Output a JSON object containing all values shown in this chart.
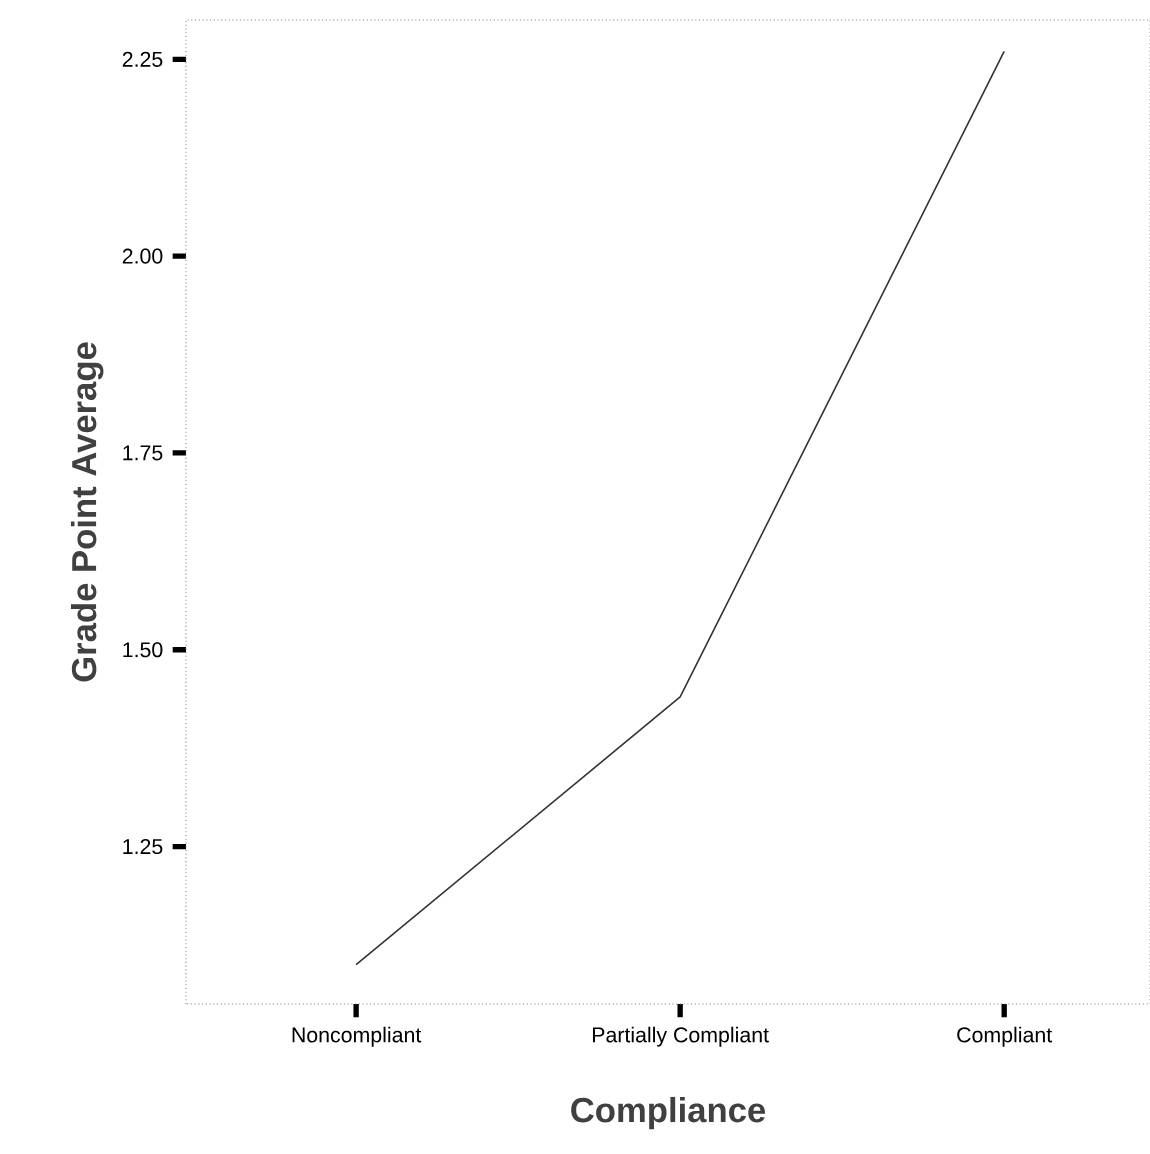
{
  "chart_data": {
    "type": "line",
    "xlabel": "Compliance",
    "ylabel": "Grade Point Average",
    "categories": [
      "Noncompliant",
      "Partially Compliant",
      "Compliant"
    ],
    "values": [
      1.1,
      1.44,
      2.26
    ],
    "color": "#333333",
    "ylim": [
      1.05,
      2.3
    ],
    "yticks": [
      {
        "value": 1.25,
        "label": "1.25"
      },
      {
        "value": 1.5,
        "label": "1.50"
      },
      {
        "value": 1.75,
        "label": "1.75"
      },
      {
        "value": 2.0,
        "label": "2.00"
      },
      {
        "value": 2.25,
        "label": "2.25"
      }
    ],
    "grid": false,
    "marker": "none",
    "line_style": "solid"
  }
}
